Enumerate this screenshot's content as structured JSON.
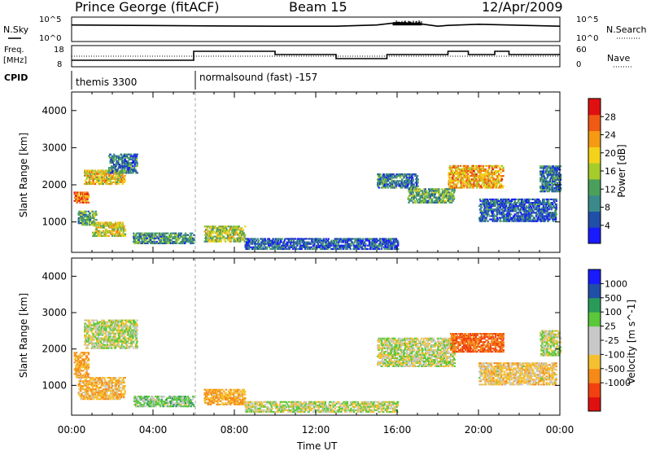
{
  "header": {
    "station": "Prince George (fitACF)",
    "beam": "Beam 15",
    "date": "12/Apr/2009"
  },
  "top_panels": {
    "nsky_label": "N.Sky",
    "nsearch_label": "N.Search",
    "nsky_ticks": [
      "10^5",
      "10^0"
    ],
    "nsearch_ticks": [
      "10^5",
      "10^0"
    ],
    "freq_label_1": "Freq.",
    "freq_label_2": "[MHz]",
    "freq_ticks": [
      "18",
      "8"
    ],
    "nave_label": "Nave",
    "nave_ticks": [
      "60",
      "0"
    ],
    "cpid_label": "CPID",
    "cpid_modes": [
      {
        "name": "themis 3300",
        "start_hour": 0
      },
      {
        "name": "normalsound (fast) -157",
        "start_hour": 6
      }
    ]
  },
  "colors": {
    "power": [
      "#1a1aff",
      "#1f4fa6",
      "#3a8a8a",
      "#4aa05a",
      "#a5cc2a",
      "#f2d21a",
      "#f59a12",
      "#ef5a14",
      "#e01010"
    ],
    "velocity": [
      "#e01010",
      "#f24010",
      "#f58a18",
      "#f5c030",
      "#c8c8c8",
      "#c8c8c8",
      "#5ac83a",
      "#2a9a5a",
      "#1f4fa6",
      "#1a1aff"
    ]
  },
  "chart_data": [
    {
      "id": "nsky_nsearch",
      "type": "line",
      "x_unit": "hours UT",
      "x_range": [
        0,
        24
      ],
      "series": [
        {
          "name": "N.Sky",
          "x": [
            0,
            6,
            10,
            13,
            15,
            16,
            17,
            18,
            18.5,
            20,
            24
          ],
          "y": [
            3.6,
            3.4,
            3.3,
            3.3,
            3.6,
            4.2,
            4.0,
            3.3,
            3.5,
            3.8,
            3.3
          ]
        },
        {
          "name": "N.Search",
          "x": [
            0,
            24
          ],
          "y": [
            0,
            0
          ]
        }
      ]
    },
    {
      "id": "freq_nave",
      "type": "line",
      "x_unit": "hours UT",
      "x_range": [
        0,
        24
      ],
      "series": [
        {
          "name": "Freq.",
          "unit": "MHz",
          "ylim": [
            8,
            18
          ],
          "x": [
            0,
            6,
            6,
            10,
            10,
            13,
            13,
            15.5,
            15.5,
            18.5,
            18.5,
            19.5,
            19.5,
            20.8,
            20.8,
            21.5,
            21.5,
            24
          ],
          "y": [
            11,
            11,
            16.5,
            16.5,
            14.5,
            14.5,
            12,
            12,
            14.5,
            14.5,
            16.5,
            16.5,
            14.5,
            14.5,
            16.5,
            16.5,
            14.5,
            14.5
          ]
        },
        {
          "name": "Nave",
          "ylim": [
            0,
            60
          ],
          "x": [
            0,
            24
          ],
          "y": [
            30,
            30
          ]
        }
      ]
    },
    {
      "id": "power",
      "type": "heatmap",
      "xlabel": "Time UT",
      "ylabel": "Slant Range [km]",
      "xlim": [
        0,
        24
      ],
      "ylim": [
        180,
        4500
      ],
      "x_ticks": [
        "00:00",
        "04:00",
        "08:00",
        "12:00",
        "16:00",
        "20:00",
        "00:00"
      ],
      "y_ticks": [
        1000,
        2000,
        3000,
        4000
      ],
      "colorbar": {
        "label": "Power [dB]",
        "ticks": [
          4,
          8,
          12,
          16,
          20,
          24,
          28
        ],
        "range": [
          0,
          32
        ]
      },
      "regions": [
        {
          "t": [
            0.1,
            0.8
          ],
          "r": [
            1500,
            1800
          ],
          "v": 26
        },
        {
          "t": [
            0.3,
            1.2
          ],
          "r": [
            900,
            1300
          ],
          "v": 12
        },
        {
          "t": [
            1.0,
            2.6
          ],
          "r": [
            600,
            1000
          ],
          "v": 18
        },
        {
          "t": [
            0.6,
            2.6
          ],
          "r": [
            2000,
            2400
          ],
          "v": 20
        },
        {
          "t": [
            1.8,
            3.2
          ],
          "r": [
            2300,
            2800
          ],
          "v": 8
        },
        {
          "t": [
            3.0,
            6.0
          ],
          "r": [
            400,
            700
          ],
          "v": 10
        },
        {
          "t": [
            6.5,
            8.5
          ],
          "r": [
            450,
            900
          ],
          "v": 16
        },
        {
          "t": [
            8.5,
            16.0
          ],
          "r": [
            250,
            550
          ],
          "v": 6
        },
        {
          "t": [
            15.0,
            17.0
          ],
          "r": [
            1900,
            2300
          ],
          "v": 8
        },
        {
          "t": [
            16.5,
            18.8
          ],
          "r": [
            1500,
            1900
          ],
          "v": 12
        },
        {
          "t": [
            18.5,
            21.2
          ],
          "r": [
            1900,
            2500
          ],
          "v": 22
        },
        {
          "t": [
            20.0,
            23.8
          ],
          "r": [
            1000,
            1600
          ],
          "v": 6
        },
        {
          "t": [
            23.0,
            24.0
          ],
          "r": [
            1800,
            2500
          ],
          "v": 8
        }
      ]
    },
    {
      "id": "velocity",
      "type": "heatmap",
      "xlabel": "Time UT",
      "ylabel": "Slant Range [km]",
      "xlim": [
        0,
        24
      ],
      "ylim": [
        180,
        4500
      ],
      "x_ticks": [
        "00:00",
        "04:00",
        "08:00",
        "12:00",
        "16:00",
        "20:00",
        "00:00"
      ],
      "y_ticks": [
        1000,
        2000,
        3000,
        4000
      ],
      "colorbar": {
        "label": "Velocity [m s^-1]",
        "ticks": [
          "1000",
          "500",
          "100",
          "25",
          "-25",
          "-100",
          "-500",
          "-1000"
        ]
      },
      "regions": [
        {
          "t": [
            0.1,
            0.8
          ],
          "r": [
            1200,
            1900
          ],
          "v": -100
        },
        {
          "t": [
            0.3,
            2.6
          ],
          "r": [
            600,
            1200
          ],
          "v": -80
        },
        {
          "t": [
            0.6,
            3.2
          ],
          "r": [
            2000,
            2800
          ],
          "v": 0
        },
        {
          "t": [
            3.0,
            6.0
          ],
          "r": [
            400,
            700
          ],
          "v": 50
        },
        {
          "t": [
            6.5,
            8.5
          ],
          "r": [
            450,
            900
          ],
          "v": -100
        },
        {
          "t": [
            8.5,
            16.0
          ],
          "r": [
            250,
            550
          ],
          "v": 0
        },
        {
          "t": [
            15.0,
            18.8
          ],
          "r": [
            1500,
            2300
          ],
          "v": 0
        },
        {
          "t": [
            18.6,
            21.2
          ],
          "r": [
            1900,
            2400
          ],
          "v": -500
        },
        {
          "t": [
            20.0,
            23.8
          ],
          "r": [
            1000,
            1600
          ],
          "v": -50
        },
        {
          "t": [
            23.0,
            24.0
          ],
          "r": [
            1800,
            2500
          ],
          "v": 0
        }
      ]
    }
  ]
}
